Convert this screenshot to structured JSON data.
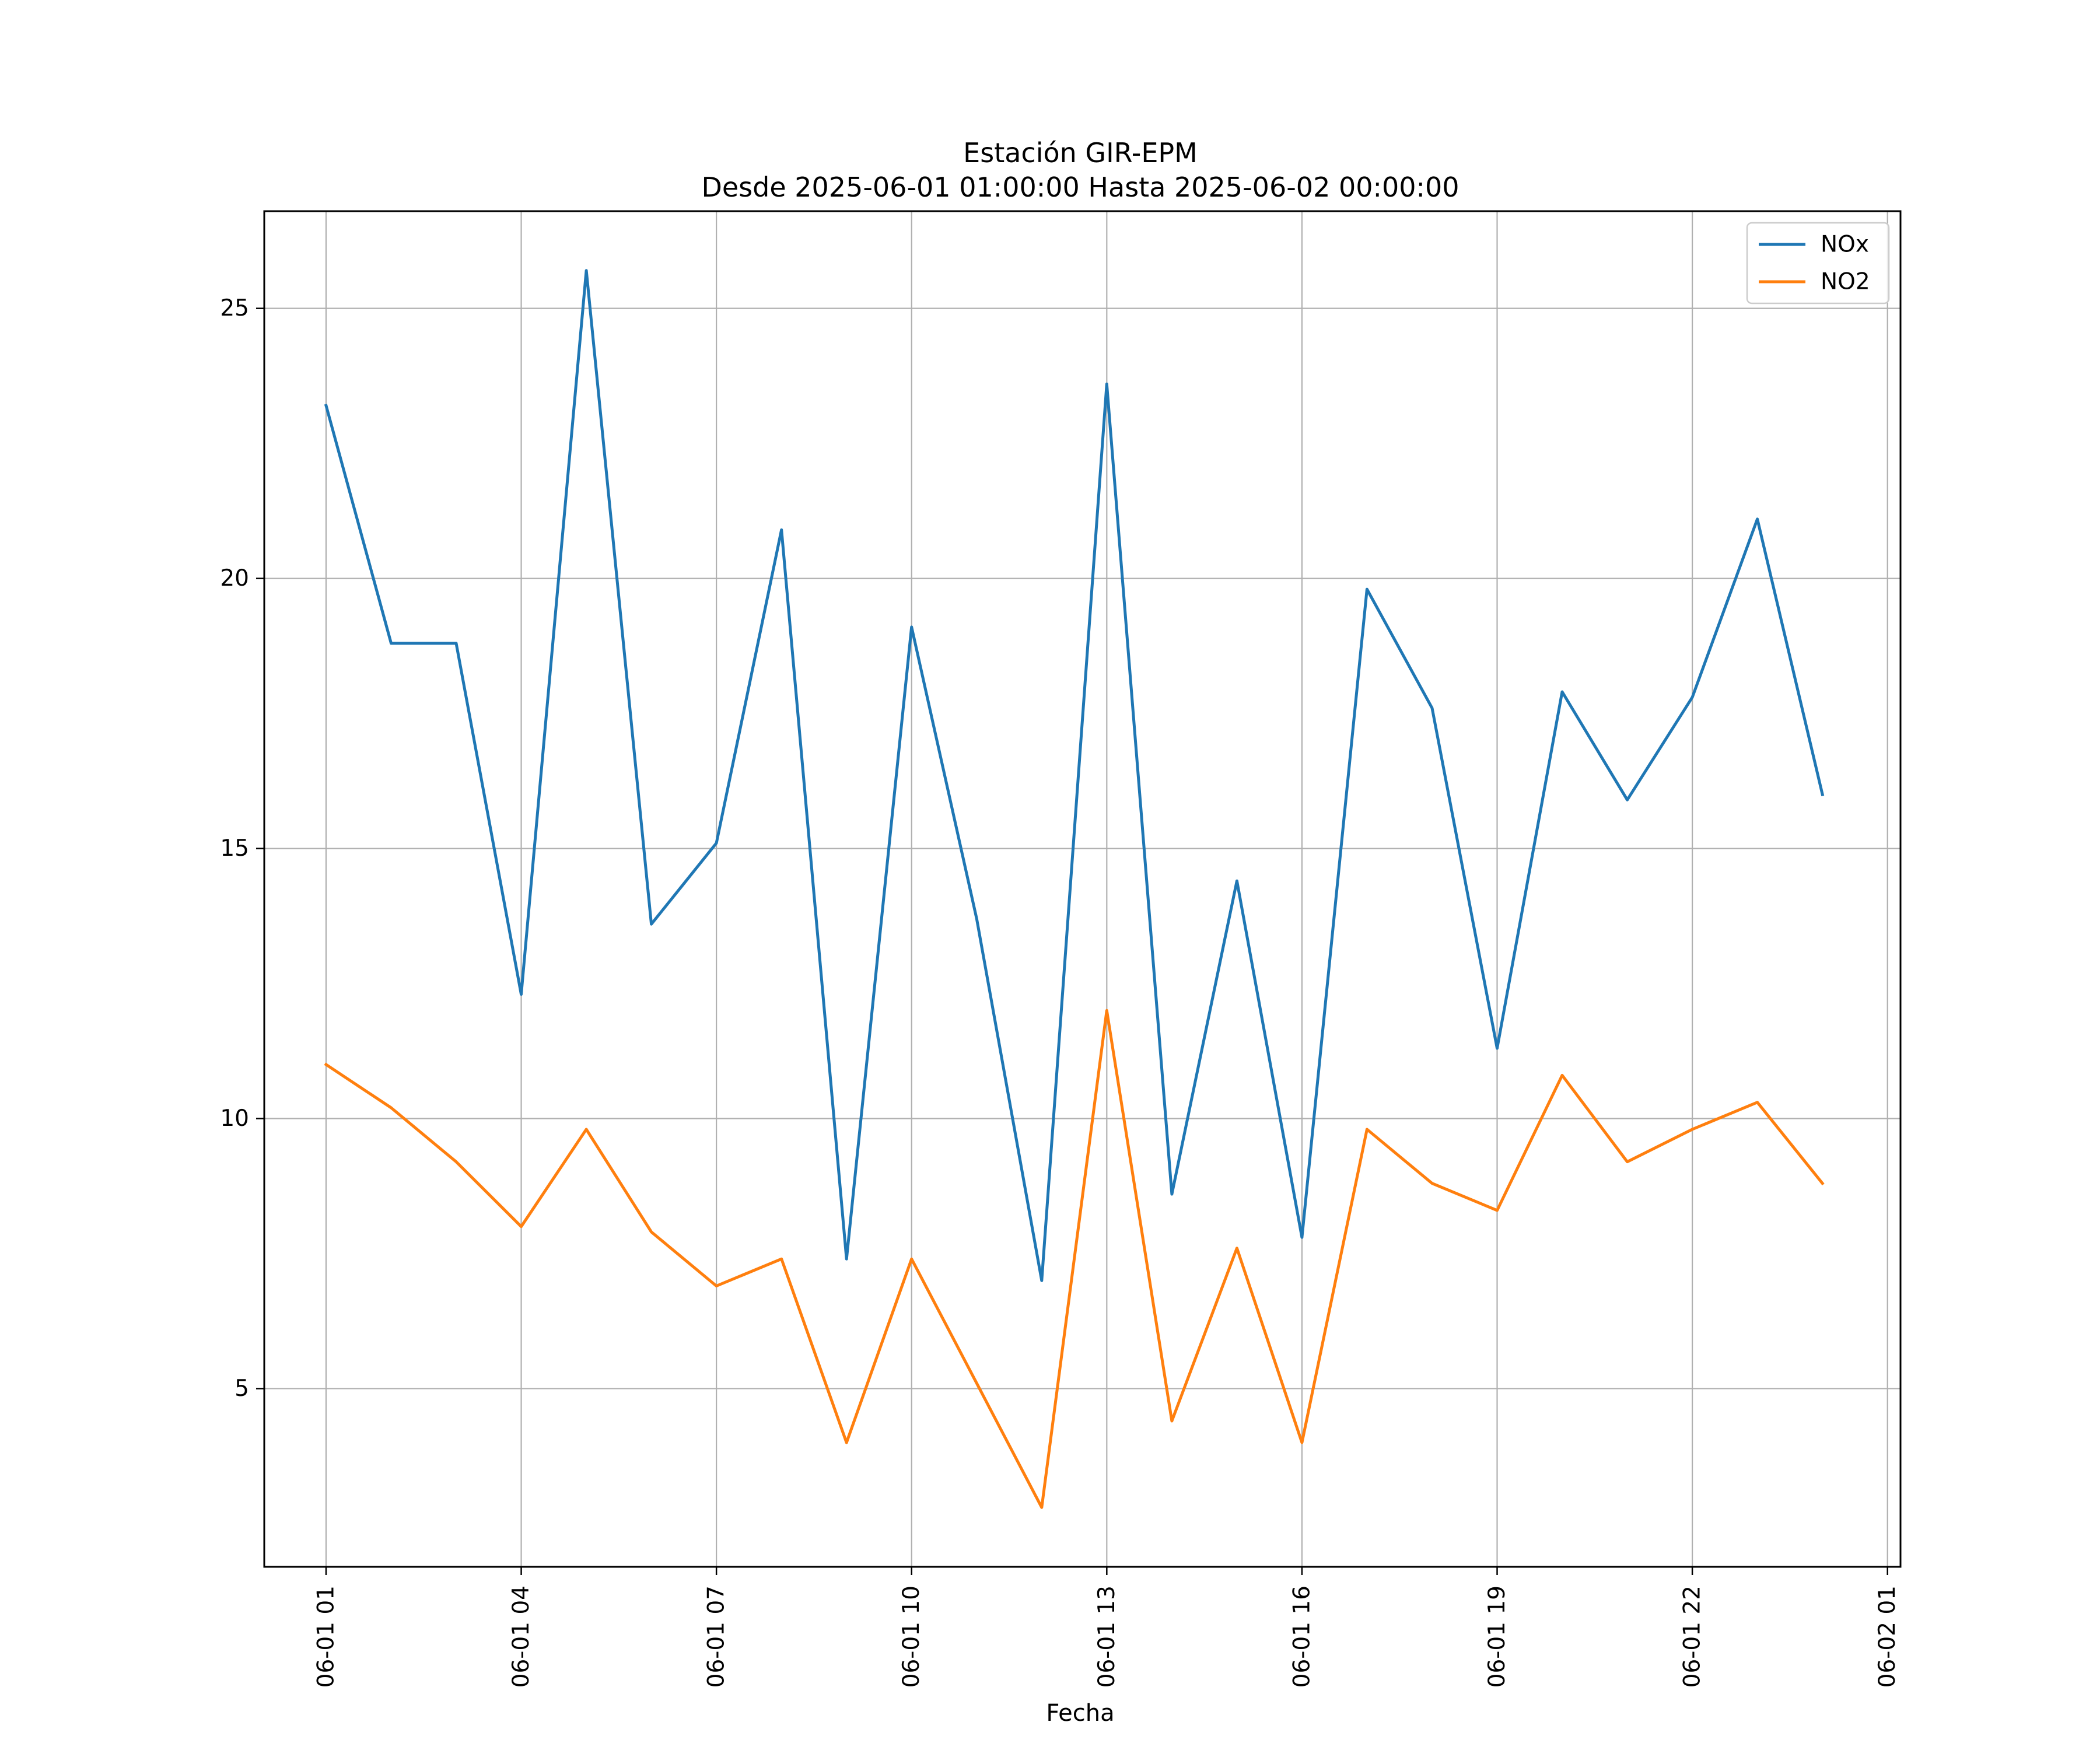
{
  "chart_data": {
    "type": "line",
    "title": "Estación GIR-EPM",
    "subtitle": "Desde 2025-06-01 01:00:00 Hasta 2025-06-02 00:00:00",
    "xlabel": "Fecha",
    "ylabel": "",
    "x": [
      "06-01 01",
      "06-01 02",
      "06-01 03",
      "06-01 04",
      "06-01 05",
      "06-01 06",
      "06-01 07",
      "06-01 08",
      "06-01 09",
      "06-01 10",
      "06-01 11",
      "06-01 12",
      "06-01 13",
      "06-01 14",
      "06-01 15",
      "06-01 16",
      "06-01 17",
      "06-01 18",
      "06-01 19",
      "06-01 20",
      "06-01 21",
      "06-01 22",
      "06-01 23",
      "06-02 00"
    ],
    "series": [
      {
        "name": "NOx",
        "color": "#1f77b4",
        "values": [
          23.2,
          18.8,
          18.8,
          12.3,
          25.7,
          13.6,
          15.1,
          20.9,
          7.4,
          19.1,
          13.7,
          7.0,
          23.6,
          8.6,
          14.4,
          7.8,
          19.8,
          17.6,
          11.3,
          17.9,
          15.9,
          17.8,
          21.1,
          16.0
        ]
      },
      {
        "name": "NO2",
        "color": "#ff7f0e",
        "values": [
          11.0,
          10.2,
          9.2,
          8.0,
          9.8,
          7.9,
          6.9,
          7.4,
          4.0,
          7.4,
          5.1,
          2.8,
          12.0,
          4.4,
          7.6,
          4.0,
          9.8,
          8.8,
          8.3,
          10.8,
          9.2,
          9.8,
          10.3,
          8.8
        ]
      }
    ],
    "x_ticks": [
      "06-01 01",
      "06-01 04",
      "06-01 07",
      "06-01 10",
      "06-01 13",
      "06-01 16",
      "06-01 19",
      "06-01 22",
      "06-02 01"
    ],
    "y_ticks": [
      5,
      10,
      15,
      20,
      25
    ],
    "ylim": [
      1.7,
      26.8
    ],
    "xlim_hours": [
      -0.95,
      24.2
    ],
    "grid": true,
    "legend_position": "top-right"
  }
}
